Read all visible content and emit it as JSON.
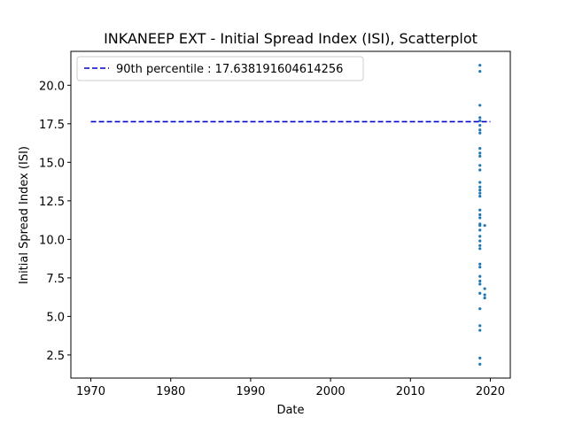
{
  "chart_data": {
    "type": "scatter",
    "title": "INKANEEP EXT - Initial Spread Index (ISI), Scatterplot",
    "xlabel": "Date",
    "ylabel": "Initial Spread Index (ISI)",
    "xlim": [
      1967.5,
      2022.5
    ],
    "ylim": [
      1.0,
      22.2
    ],
    "x_ticks": [
      1970,
      1980,
      1990,
      2000,
      2010,
      2020
    ],
    "y_ticks": [
      2.5,
      5.0,
      7.5,
      10.0,
      12.5,
      15.0,
      17.5,
      20.0
    ],
    "y_tick_labels": [
      "2.5",
      "5.0",
      "7.5",
      "10.0",
      "12.5",
      "15.0",
      "17.5",
      "20.0"
    ],
    "grid": false,
    "legend_position": "top-left",
    "reference_line": {
      "label": "90th percentile : 17.638191604614256",
      "value": 17.638191604614256,
      "x_start": 1970,
      "x_end": 2020,
      "color": "#0000cc",
      "style": "dashed"
    },
    "series": [
      {
        "color": "#1f77b4",
        "points": [
          {
            "x": 2018.7,
            "y": 21.3
          },
          {
            "x": 2018.7,
            "y": 20.9
          },
          {
            "x": 2018.7,
            "y": 18.7
          },
          {
            "x": 2018.7,
            "y": 17.9
          },
          {
            "x": 2018.7,
            "y": 17.7
          },
          {
            "x": 2018.7,
            "y": 17.4
          },
          {
            "x": 2018.7,
            "y": 17.1
          },
          {
            "x": 2018.7,
            "y": 16.9
          },
          {
            "x": 2018.7,
            "y": 15.9
          },
          {
            "x": 2018.7,
            "y": 15.6
          },
          {
            "x": 2018.7,
            "y": 15.4
          },
          {
            "x": 2018.7,
            "y": 14.8
          },
          {
            "x": 2018.7,
            "y": 14.5
          },
          {
            "x": 2018.7,
            "y": 13.7
          },
          {
            "x": 2018.7,
            "y": 13.4
          },
          {
            "x": 2018.7,
            "y": 13.2
          },
          {
            "x": 2018.7,
            "y": 13.0
          },
          {
            "x": 2018.7,
            "y": 12.8
          },
          {
            "x": 2018.7,
            "y": 11.9
          },
          {
            "x": 2018.7,
            "y": 11.6
          },
          {
            "x": 2018.7,
            "y": 11.4
          },
          {
            "x": 2018.7,
            "y": 11.0
          },
          {
            "x": 2018.7,
            "y": 10.9
          },
          {
            "x": 2018.7,
            "y": 10.6
          },
          {
            "x": 2018.7,
            "y": 10.2
          },
          {
            "x": 2018.7,
            "y": 9.9
          },
          {
            "x": 2018.7,
            "y": 9.6
          },
          {
            "x": 2018.7,
            "y": 9.4
          },
          {
            "x": 2018.7,
            "y": 8.4
          },
          {
            "x": 2018.7,
            "y": 8.2
          },
          {
            "x": 2018.7,
            "y": 7.6
          },
          {
            "x": 2018.7,
            "y": 7.3
          },
          {
            "x": 2018.7,
            "y": 7.1
          },
          {
            "x": 2018.7,
            "y": 6.5
          },
          {
            "x": 2018.7,
            "y": 5.5
          },
          {
            "x": 2018.7,
            "y": 4.4
          },
          {
            "x": 2018.7,
            "y": 4.1
          },
          {
            "x": 2018.7,
            "y": 2.3
          },
          {
            "x": 2018.7,
            "y": 1.9
          },
          {
            "x": 2019.3,
            "y": 10.9
          },
          {
            "x": 2019.3,
            "y": 6.8
          },
          {
            "x": 2019.3,
            "y": 6.4
          },
          {
            "x": 2019.3,
            "y": 6.2
          }
        ]
      }
    ]
  }
}
